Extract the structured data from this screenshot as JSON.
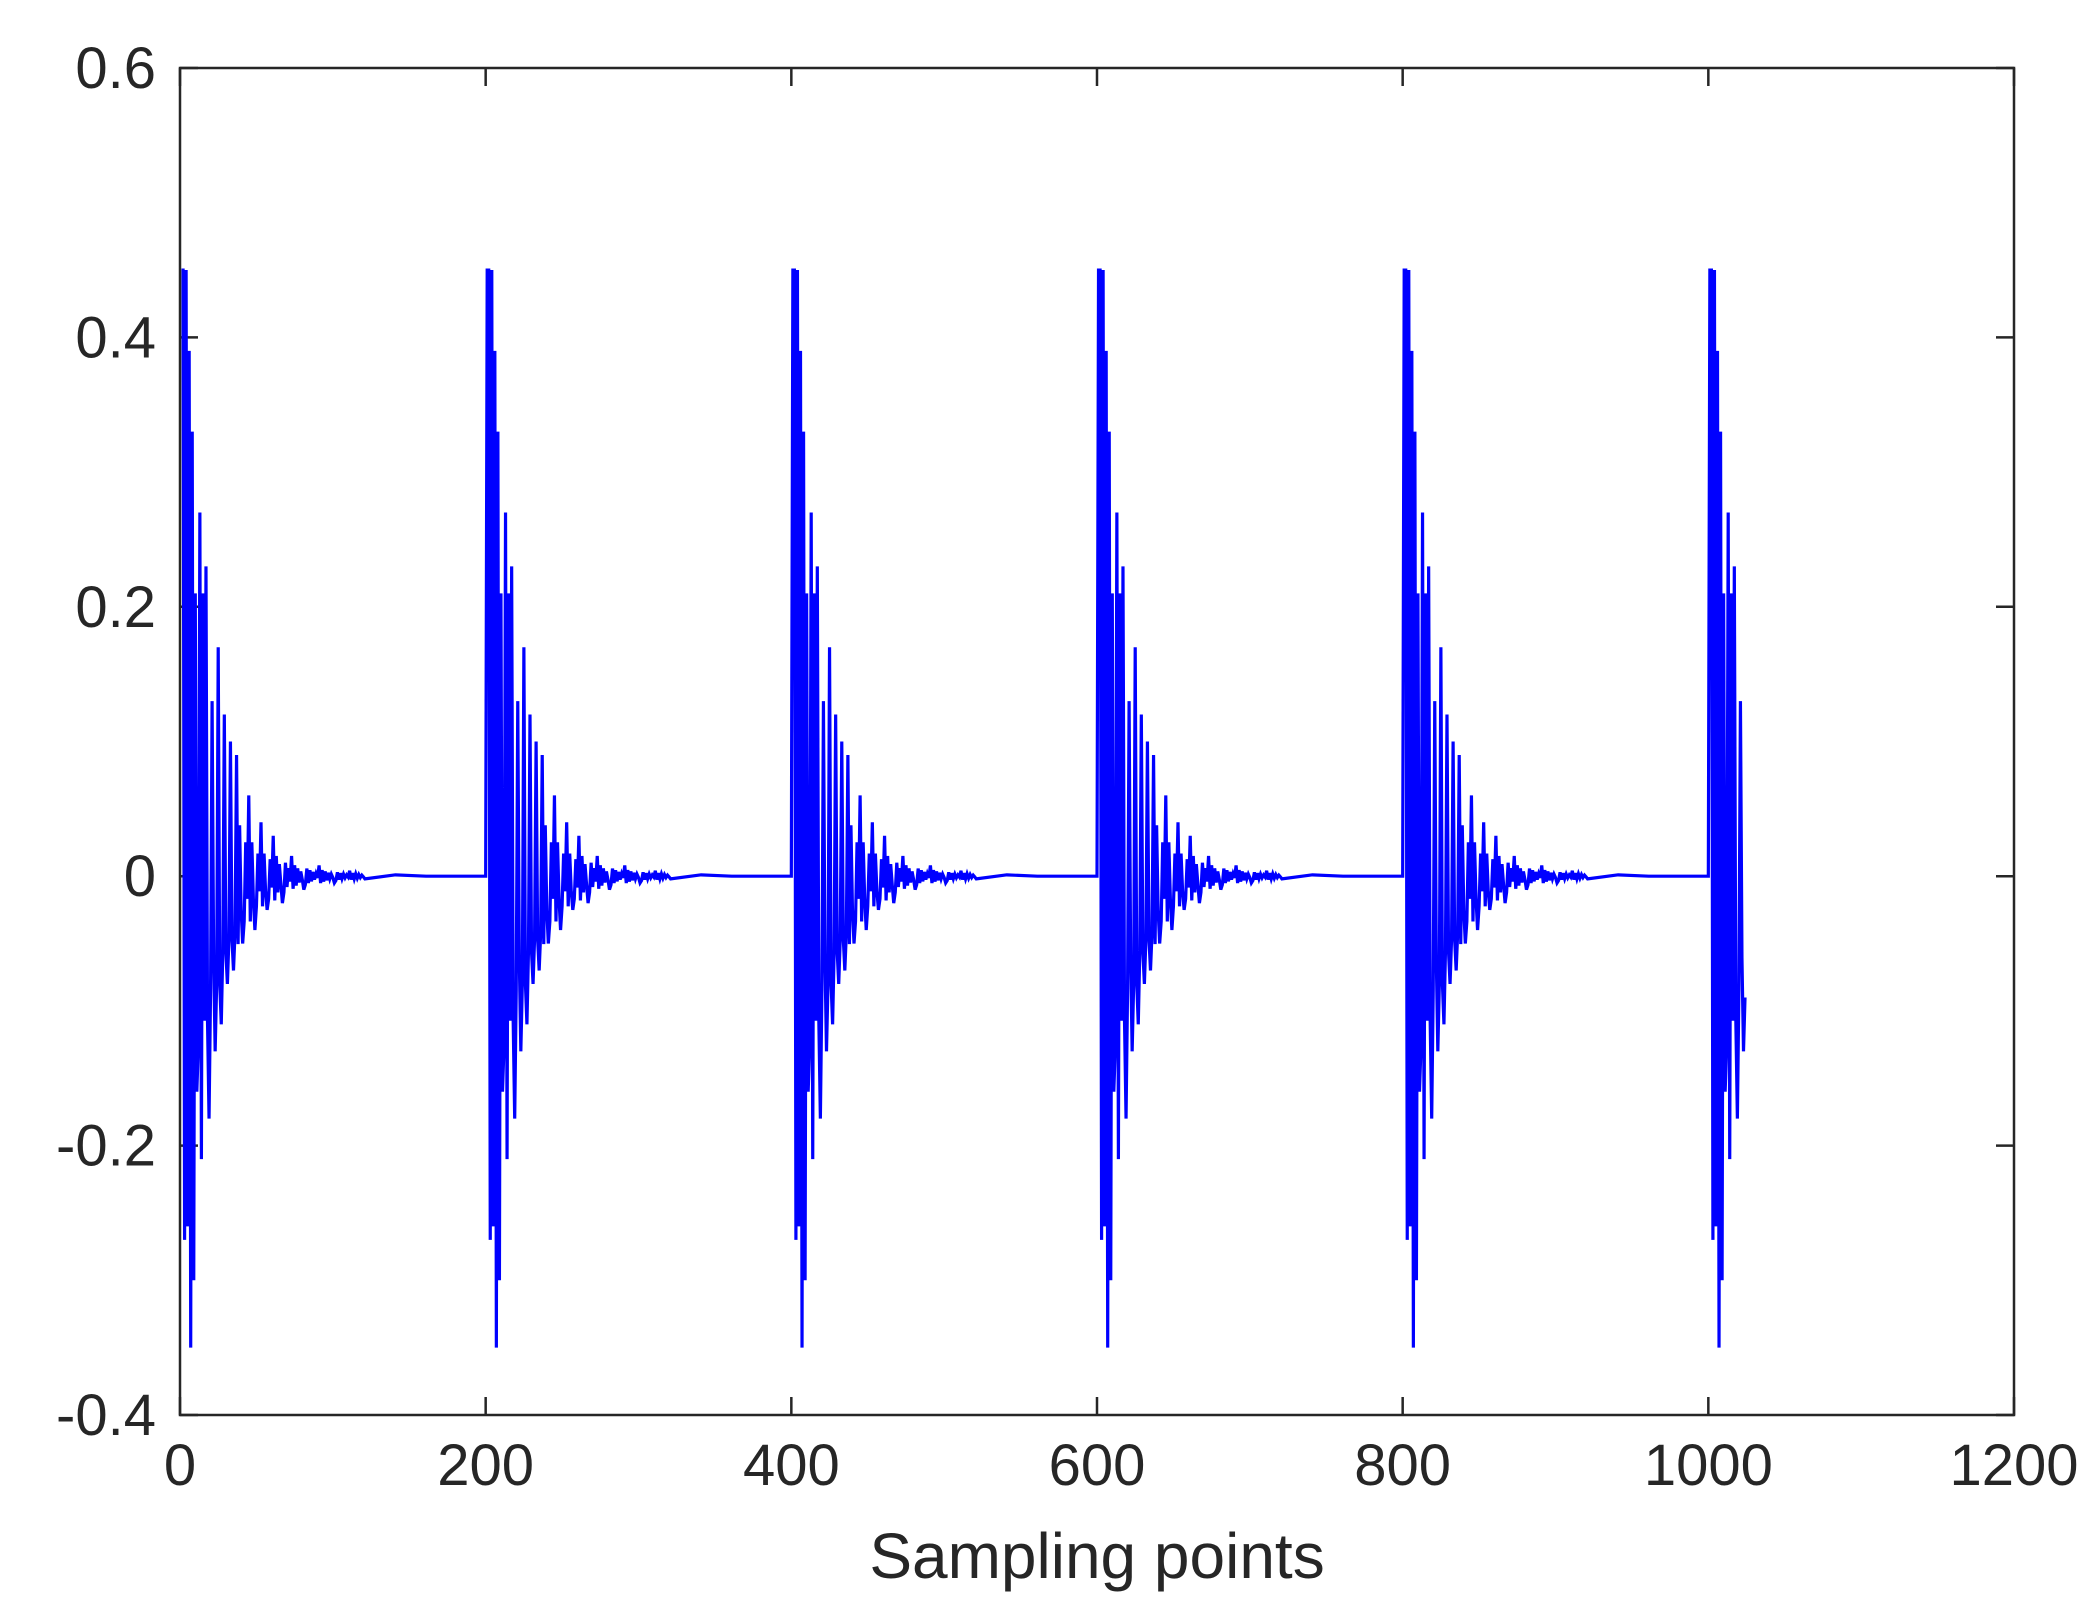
{
  "chart_data": {
    "type": "line",
    "title": "",
    "xlabel": "Sampling points",
    "ylabel": "",
    "xlim": [
      0,
      1200
    ],
    "ylim": [
      -0.4,
      0.6
    ],
    "xticks": [
      0,
      200,
      400,
      600,
      800,
      1000,
      1200
    ],
    "yticks": [
      -0.4,
      -0.2,
      0,
      0.2,
      0.4,
      0.6
    ],
    "xtick_labels": [
      "0",
      "200",
      "400",
      "600",
      "800",
      "1000",
      "1200"
    ],
    "ytick_labels": [
      "-0.4",
      "-0.2",
      "0",
      "0.2",
      "0.4",
      "0.6"
    ],
    "grid": false,
    "box": true,
    "line_color": "#0000ff",
    "axis_color": "#262626",
    "x_range": [
      1,
      1024
    ],
    "series": [
      {
        "name": "",
        "pulse_period": 200,
        "pulse_starts": [
          0,
          200,
          400,
          600,
          800,
          1000
        ],
        "pulse_envelope": [
          [
            0,
            0.45
          ],
          [
            1,
            0.45
          ],
          [
            2,
            -0.27
          ],
          [
            3,
            0.45
          ],
          [
            4,
            -0.26
          ],
          [
            5,
            0.39
          ],
          [
            6,
            -0.35
          ],
          [
            7,
            0.33
          ],
          [
            8,
            -0.3
          ],
          [
            9,
            0.21
          ],
          [
            10,
            -0.16
          ],
          [
            12,
            0.27
          ],
          [
            13,
            -0.21
          ],
          [
            14,
            0.21
          ],
          [
            16,
            0.23
          ],
          [
            18,
            -0.18
          ],
          [
            20,
            0.13
          ],
          [
            22,
            -0.13
          ],
          [
            24,
            0.17
          ],
          [
            26,
            -0.11
          ],
          [
            28,
            0.12
          ],
          [
            30,
            -0.08
          ],
          [
            32,
            0.1
          ],
          [
            34,
            -0.07
          ],
          [
            36,
            0.09
          ],
          [
            40,
            -0.05
          ],
          [
            44,
            0.06
          ],
          [
            48,
            -0.04
          ],
          [
            52,
            0.04
          ],
          [
            56,
            -0.025
          ],
          [
            60,
            0.03
          ],
          [
            66,
            -0.02
          ],
          [
            72,
            0.015
          ],
          [
            80,
            -0.01
          ],
          [
            90,
            0.008
          ],
          [
            100,
            -0.005
          ],
          [
            110,
            0.004
          ],
          [
            120,
            -0.002
          ],
          [
            140,
            0.001
          ],
          [
            160,
            0.0
          ],
          [
            199,
            0.0
          ]
        ],
        "last_point": [
          1024,
          -0.09
        ]
      }
    ]
  }
}
